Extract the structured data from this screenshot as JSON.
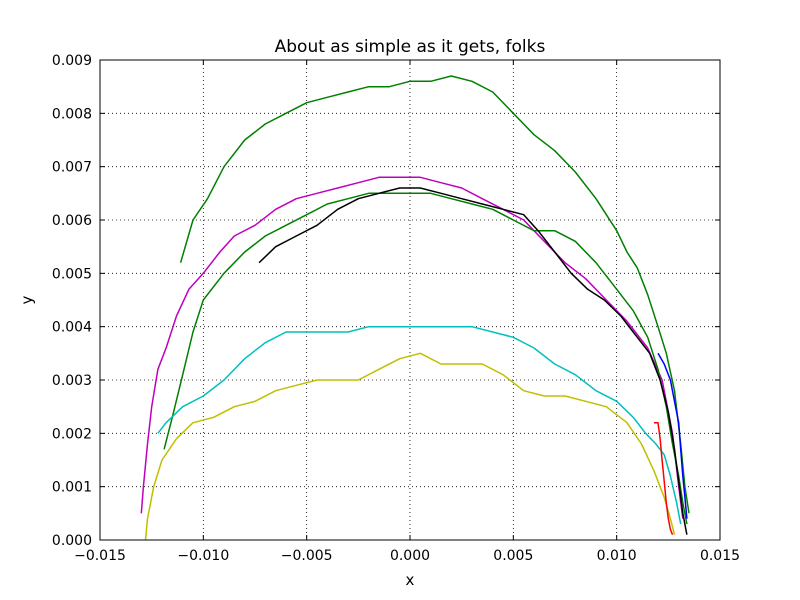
{
  "chart_data": {
    "type": "line",
    "title": "About as simple as it gets, folks",
    "xlabel": "x",
    "ylabel": "y",
    "xlim": [
      -0.015,
      0.015
    ],
    "ylim": [
      0.0,
      0.009
    ],
    "grid": true,
    "xticks": [
      -0.015,
      -0.01,
      -0.005,
      0.0,
      0.005,
      0.01,
      0.015
    ],
    "xtick_labels": [
      "−0.015",
      "−0.010",
      "−0.005",
      "0.000",
      "0.005",
      "0.010",
      "0.015"
    ],
    "yticks": [
      0.0,
      0.001,
      0.002,
      0.003,
      0.004,
      0.005,
      0.006,
      0.007,
      0.008,
      0.009
    ],
    "ytick_labels": [
      "0.000",
      "0.001",
      "0.002",
      "0.003",
      "0.004",
      "0.005",
      "0.006",
      "0.007",
      "0.008",
      "0.009"
    ],
    "series": [
      {
        "color": "#008000",
        "x": [
          -0.0111,
          -0.0105,
          -0.0098,
          -0.009,
          -0.008,
          -0.007,
          -0.006,
          -0.005,
          -0.004,
          -0.003,
          -0.002,
          -0.001,
          0.0,
          0.001,
          0.002,
          0.003,
          0.004,
          0.005,
          0.006,
          0.007,
          0.008,
          0.009,
          0.01,
          0.0105,
          0.011,
          0.0115,
          0.012,
          0.0124,
          0.0128,
          0.0131,
          0.0133,
          0.0135
        ],
        "y": [
          0.0052,
          0.006,
          0.0064,
          0.007,
          0.0075,
          0.0078,
          0.008,
          0.0082,
          0.0083,
          0.0084,
          0.0085,
          0.0085,
          0.0086,
          0.0086,
          0.0087,
          0.0086,
          0.0084,
          0.008,
          0.0076,
          0.0073,
          0.0069,
          0.0064,
          0.0058,
          0.0054,
          0.0051,
          0.0046,
          0.004,
          0.0035,
          0.0028,
          0.0018,
          0.001,
          0.0005
        ]
      },
      {
        "color": "#bf00bf",
        "x": [
          -0.013,
          -0.0129,
          -0.0127,
          -0.0125,
          -0.0122,
          -0.0118,
          -0.0113,
          -0.0107,
          -0.01,
          -0.0092,
          -0.0085,
          -0.0075,
          -0.0065,
          -0.0055,
          -0.0045,
          -0.0035,
          -0.0025,
          -0.0015,
          -0.0005,
          0.0005,
          0.0015,
          0.0025,
          0.0035,
          0.0045,
          0.0055,
          0.0065,
          0.0075,
          0.0085,
          0.0095,
          0.0105,
          0.0115,
          0.0122,
          0.0127,
          0.013,
          0.0132
        ],
        "y": [
          0.0005,
          0.001,
          0.0018,
          0.0025,
          0.0032,
          0.0036,
          0.0042,
          0.0047,
          0.005,
          0.0054,
          0.0057,
          0.0059,
          0.0062,
          0.0064,
          0.0065,
          0.0066,
          0.0067,
          0.0068,
          0.0068,
          0.0068,
          0.0067,
          0.0066,
          0.0064,
          0.0062,
          0.006,
          0.0056,
          0.0052,
          0.0049,
          0.0045,
          0.0041,
          0.0036,
          0.003,
          0.002,
          0.001,
          0.0004
        ]
      },
      {
        "color": "#008000",
        "x": [
          -0.0119,
          -0.0115,
          -0.011,
          -0.0105,
          -0.01,
          -0.009,
          -0.008,
          -0.007,
          -0.006,
          -0.005,
          -0.004,
          -0.003,
          -0.002,
          -0.001,
          0.0,
          0.001,
          0.002,
          0.003,
          0.004,
          0.005,
          0.006,
          0.007,
          0.008,
          0.009,
          0.01,
          0.0108,
          0.0115,
          0.012,
          0.0124,
          0.0127,
          0.013,
          0.0132,
          0.0134
        ],
        "y": [
          0.0017,
          0.0023,
          0.0031,
          0.0039,
          0.0045,
          0.005,
          0.0054,
          0.0057,
          0.0059,
          0.0061,
          0.0063,
          0.0064,
          0.0065,
          0.0065,
          0.0065,
          0.0065,
          0.0064,
          0.0063,
          0.0062,
          0.006,
          0.0058,
          0.0058,
          0.0056,
          0.0052,
          0.0047,
          0.0043,
          0.0038,
          0.0032,
          0.0025,
          0.0018,
          0.0012,
          0.0007,
          0.0003
        ]
      },
      {
        "color": "#000000",
        "x": [
          -0.0073,
          -0.0065,
          -0.0055,
          -0.0045,
          -0.0035,
          -0.0025,
          -0.0015,
          -0.0005,
          0.0005,
          0.0015,
          0.0025,
          0.0035,
          0.0045,
          0.0055,
          0.0062,
          0.007,
          0.0078,
          0.0086,
          0.0094,
          0.0102,
          0.011,
          0.0116,
          0.0121,
          0.0125,
          0.0128,
          0.013,
          0.0132,
          0.0134
        ],
        "y": [
          0.0052,
          0.0055,
          0.0057,
          0.0059,
          0.0062,
          0.0064,
          0.0065,
          0.0066,
          0.0066,
          0.0065,
          0.0064,
          0.0063,
          0.0062,
          0.0061,
          0.0058,
          0.0054,
          0.005,
          0.0047,
          0.0045,
          0.0042,
          0.0038,
          0.0035,
          0.003,
          0.0024,
          0.0017,
          0.0011,
          0.0005,
          0.0001
        ]
      },
      {
        "color": "#00bfbf",
        "x": [
          -0.0122,
          -0.0118,
          -0.011,
          -0.01,
          -0.009,
          -0.008,
          -0.007,
          -0.006,
          -0.005,
          -0.004,
          -0.003,
          -0.002,
          -0.001,
          0.0,
          0.001,
          0.002,
          0.003,
          0.004,
          0.005,
          0.006,
          0.007,
          0.008,
          0.009,
          0.01,
          0.0108,
          0.0114,
          0.0119,
          0.0123,
          0.0126,
          0.0129,
          0.0131
        ],
        "y": [
          0.002,
          0.0022,
          0.0025,
          0.0027,
          0.003,
          0.0034,
          0.0037,
          0.0039,
          0.0039,
          0.0039,
          0.0039,
          0.004,
          0.004,
          0.004,
          0.004,
          0.004,
          0.004,
          0.0039,
          0.0038,
          0.0036,
          0.0033,
          0.0031,
          0.0028,
          0.0026,
          0.0023,
          0.002,
          0.0018,
          0.0016,
          0.0012,
          0.0007,
          0.0003
        ]
      },
      {
        "color": "#bfbf00",
        "x": [
          -0.0128,
          -0.0127,
          -0.0124,
          -0.012,
          -0.0113,
          -0.0105,
          -0.0095,
          -0.0085,
          -0.0075,
          -0.0065,
          -0.0055,
          -0.0045,
          -0.0035,
          -0.0025,
          -0.0015,
          -0.0005,
          0.0005,
          0.0015,
          0.0025,
          0.0035,
          0.0045,
          0.0055,
          0.0065,
          0.0075,
          0.0085,
          0.0095,
          0.0105,
          0.0112,
          0.0118,
          0.0123,
          0.0126,
          0.0128
        ],
        "y": [
          0.0,
          0.0004,
          0.001,
          0.0015,
          0.0019,
          0.0022,
          0.0023,
          0.0025,
          0.0026,
          0.0028,
          0.0029,
          0.003,
          0.003,
          0.003,
          0.0032,
          0.0034,
          0.0035,
          0.0033,
          0.0033,
          0.0033,
          0.0031,
          0.0028,
          0.0027,
          0.0027,
          0.0026,
          0.0025,
          0.0022,
          0.0018,
          0.0013,
          0.0008,
          0.0004,
          0.0001
        ]
      },
      {
        "color": "#0000ff",
        "x": [
          0.012,
          0.0123,
          0.0126,
          0.0128,
          0.013,
          0.0131,
          0.0132,
          0.0133,
          0.0134
        ],
        "y": [
          0.0035,
          0.0033,
          0.003,
          0.0026,
          0.0022,
          0.0017,
          0.0012,
          0.0008,
          0.0004
        ]
      },
      {
        "color": "#ff0000",
        "x": [
          0.0118,
          0.012,
          0.0121,
          0.0122,
          0.0123,
          0.0124,
          0.0125,
          0.0126,
          0.0127
        ],
        "y": [
          0.0022,
          0.0022,
          0.0019,
          0.0015,
          0.0011,
          0.0007,
          0.0004,
          0.0002,
          0.0001
        ]
      }
    ]
  }
}
